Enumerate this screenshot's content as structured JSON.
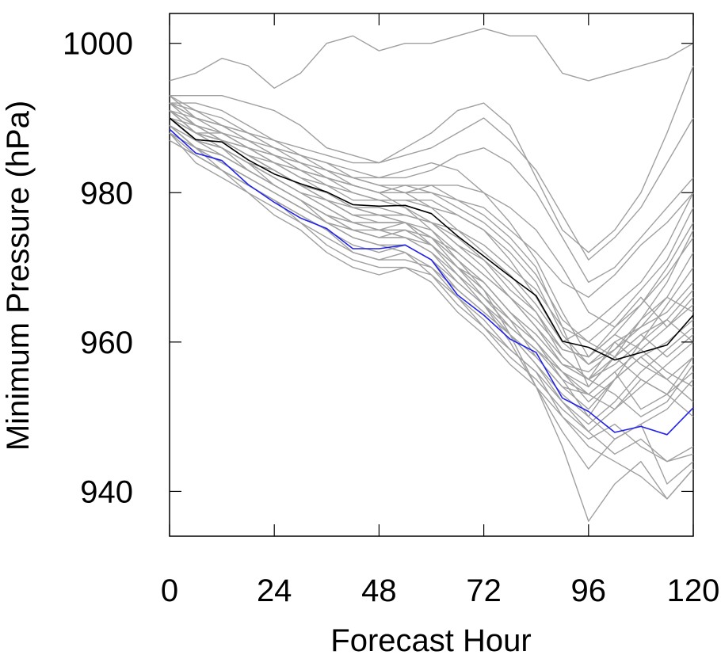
{
  "chart_data": {
    "type": "line",
    "title": "",
    "xlabel": "Forecast Hour",
    "ylabel": "Minimum Pressure (hPa)",
    "xlim": [
      0,
      120
    ],
    "ylim": [
      934,
      1004
    ],
    "x_ticks": [
      0,
      24,
      48,
      72,
      96,
      120
    ],
    "x_tick_labels": [
      "0",
      "24",
      "48",
      "72",
      "96",
      "120"
    ],
    "y_ticks": [
      940,
      960,
      980,
      1000
    ],
    "y_tick_labels": [
      "940",
      "960",
      "980",
      "1000"
    ],
    "grid": false,
    "legend": "none",
    "x": [
      0,
      6,
      12,
      18,
      24,
      30,
      36,
      42,
      48,
      54,
      60,
      66,
      72,
      78,
      84,
      90,
      96,
      102,
      108,
      114,
      120
    ],
    "highlight_series": [
      {
        "color": "#000000",
        "values": [
          990,
          987.1,
          986.8,
          984.4,
          982.5,
          981.2,
          980.1,
          978.4,
          978.2,
          978.3,
          977.2,
          974.2,
          971.5,
          968.8,
          966.2,
          960.1,
          959.3,
          957.6,
          958.6,
          959.6,
          963.6
        ]
      },
      {
        "color": "#2222ee",
        "values": [
          988.5,
          985.3,
          984.3,
          981.1,
          978.7,
          976.6,
          975.2,
          972.5,
          972.5,
          973.0,
          971.0,
          966.3,
          963.6,
          960.4,
          958.6,
          952.5,
          950.7,
          947.9,
          948.7,
          947.6,
          951.2
        ]
      }
    ],
    "ensemble_color": "#a0a0a0",
    "ensemble_series": [
      {
        "values": [
          995,
          996,
          998,
          997,
          994,
          996,
          1000,
          1001,
          999,
          1000,
          1000,
          1001,
          1002,
          1001,
          1001,
          996,
          995,
          996,
          997,
          998,
          1000
        ]
      },
      {
        "values": [
          993,
          993,
          993,
          992,
          991,
          989,
          986,
          985,
          984,
          986,
          988,
          991,
          992,
          989,
          982,
          975,
          972,
          975,
          980,
          988,
          997
        ]
      },
      {
        "values": [
          992,
          992,
          991,
          989,
          987,
          985,
          983,
          981,
          980,
          978,
          975,
          971,
          967,
          961,
          954,
          946,
          936,
          941,
          944,
          939,
          943
        ]
      },
      {
        "values": [
          991,
          989,
          987,
          986,
          984,
          982,
          980,
          978,
          977,
          976,
          973,
          969,
          965,
          960,
          954,
          948,
          943,
          947,
          949,
          941,
          944
        ]
      },
      {
        "values": [
          993,
          990,
          989,
          987,
          986,
          984,
          983,
          982,
          981,
          980,
          980,
          979,
          977,
          974,
          970,
          962,
          954,
          958,
          963,
          968,
          975
        ]
      },
      {
        "values": [
          989,
          986,
          984,
          982,
          980,
          978,
          976,
          975,
          974,
          975,
          973,
          970,
          967,
          963,
          960,
          955,
          950,
          955,
          960,
          965,
          970
        ]
      },
      {
        "values": [
          990,
          988,
          987,
          985,
          983,
          981,
          979,
          977,
          977,
          976,
          975,
          972,
          969,
          966,
          962,
          958,
          955,
          960,
          957,
          955,
          958
        ]
      },
      {
        "values": [
          988,
          984,
          982,
          980,
          977,
          975,
          972,
          970,
          969,
          970,
          968,
          964,
          961,
          957,
          954,
          950,
          946,
          944,
          942,
          939,
          943
        ]
      },
      {
        "values": [
          991,
          988,
          988,
          986,
          984,
          983,
          982,
          981,
          980,
          980,
          981,
          981,
          980,
          978,
          975,
          970,
          964,
          962,
          965,
          970,
          976
        ]
      },
      {
        "values": [
          990,
          987,
          985,
          983,
          981,
          979,
          976,
          974,
          973,
          972,
          969,
          965,
          962,
          958,
          955,
          951,
          948,
          951,
          955,
          953,
          958
        ]
      },
      {
        "values": [
          992,
          990,
          989,
          988,
          986,
          985,
          984,
          983,
          982,
          982,
          983,
          985,
          986,
          984,
          980,
          974,
          968,
          970,
          974,
          978,
          982
        ]
      },
      {
        "values": [
          987,
          985,
          983,
          980,
          978,
          976,
          973,
          971,
          970,
          970,
          969,
          966,
          962,
          959,
          956,
          952,
          949,
          952,
          956,
          959,
          962
        ]
      },
      {
        "values": [
          991,
          989,
          987,
          986,
          985,
          983,
          982,
          980,
          979,
          978,
          976,
          973,
          971,
          967,
          964,
          959,
          958,
          962,
          966,
          962,
          965
        ]
      },
      {
        "values": [
          989,
          986,
          983,
          981,
          979,
          977,
          975,
          973,
          972,
          973,
          971,
          967,
          964,
          961,
          958,
          954,
          953,
          956,
          959,
          956,
          954
        ]
      },
      {
        "values": [
          990,
          987,
          986,
          984,
          982,
          980,
          979,
          977,
          977,
          977,
          976,
          973,
          970,
          966,
          962,
          957,
          955,
          953,
          950,
          952,
          957
        ]
      },
      {
        "values": [
          992,
          989,
          988,
          986,
          984,
          983,
          981,
          980,
          979,
          979,
          979,
          977,
          975,
          971,
          966,
          960,
          957,
          960,
          962,
          966,
          972
        ]
      },
      {
        "values": [
          988,
          985,
          983,
          981,
          979,
          976,
          974,
          972,
          971,
          971,
          970,
          966,
          963,
          959,
          956,
          950,
          947,
          949,
          946,
          944,
          945
        ]
      },
      {
        "values": [
          991,
          988,
          987,
          985,
          983,
          981,
          979,
          978,
          978,
          977,
          976,
          975,
          973,
          970,
          967,
          962,
          960,
          963,
          967,
          971,
          978
        ]
      },
      {
        "values": [
          989,
          987,
          986,
          984,
          982,
          980,
          978,
          976,
          975,
          975,
          973,
          970,
          967,
          963,
          958,
          954,
          951,
          955,
          958,
          960,
          963
        ]
      },
      {
        "values": [
          990,
          988,
          986,
          984,
          981,
          979,
          977,
          976,
          975,
          976,
          974,
          970,
          966,
          962,
          959,
          956,
          952,
          955,
          958,
          955,
          952
        ]
      },
      {
        "values": [
          993,
          991,
          989,
          988,
          986,
          985,
          984,
          982,
          982,
          983,
          984,
          983,
          980,
          976,
          971,
          964,
          958,
          961,
          965,
          969,
          974
        ]
      },
      {
        "values": [
          987,
          985,
          983,
          981,
          979,
          977,
          975,
          972,
          971,
          972,
          970,
          967,
          964,
          961,
          957,
          953,
          950,
          947,
          949,
          951,
          955
        ]
      },
      {
        "values": [
          991,
          990,
          988,
          987,
          985,
          984,
          983,
          982,
          981,
          981,
          980,
          978,
          976,
          973,
          969,
          963,
          960,
          958,
          961,
          963,
          960
        ]
      },
      {
        "values": [
          989,
          986,
          985,
          983,
          981,
          979,
          977,
          975,
          975,
          974,
          972,
          968,
          965,
          962,
          959,
          955,
          953,
          956,
          951,
          953,
          956
        ]
      },
      {
        "values": [
          992,
          990,
          989,
          987,
          985,
          984,
          982,
          981,
          980,
          980,
          978,
          975,
          972,
          969,
          965,
          960,
          962,
          965,
          968,
          973,
          980
        ]
      },
      {
        "values": [
          988,
          986,
          984,
          982,
          980,
          978,
          976,
          974,
          973,
          973,
          971,
          968,
          965,
          961,
          957,
          952,
          948,
          945,
          947,
          944,
          946
        ]
      },
      {
        "values": [
          990,
          988,
          987,
          985,
          984,
          982,
          981,
          979,
          979,
          979,
          978,
          977,
          975,
          972,
          968,
          961,
          957,
          959,
          962,
          964,
          968
        ]
      },
      {
        "values": [
          991,
          989,
          987,
          985,
          983,
          981,
          979,
          977,
          976,
          976,
          974,
          971,
          968,
          964,
          960,
          956,
          954,
          958,
          961,
          958,
          961
        ]
      },
      {
        "values": [
          989,
          987,
          986,
          984,
          983,
          981,
          980,
          978,
          977,
          977,
          976,
          974,
          971,
          968,
          964,
          958,
          955,
          957,
          960,
          963,
          967
        ]
      },
      {
        "values": [
          990,
          987,
          986,
          983,
          981,
          979,
          977,
          975,
          974,
          974,
          972,
          969,
          966,
          963,
          960,
          956,
          953,
          951,
          954,
          957,
          960
        ]
      },
      {
        "values": [
          992,
          991,
          990,
          988,
          987,
          986,
          985,
          984,
          984,
          985,
          986,
          988,
          990,
          987,
          983,
          977,
          971,
          974,
          978,
          984,
          990
        ]
      },
      {
        "values": [
          988,
          986,
          984,
          982,
          980,
          978,
          976,
          975,
          974,
          974,
          973,
          970,
          968,
          964,
          961,
          957,
          955,
          958,
          955,
          953,
          950
        ]
      },
      {
        "values": [
          990,
          989,
          988,
          986,
          985,
          983,
          982,
          981,
          980,
          981,
          981,
          979,
          978,
          975,
          972,
          968,
          966,
          969,
          973,
          976,
          980
        ]
      },
      {
        "values": [
          991,
          988,
          986,
          984,
          982,
          980,
          978,
          976,
          975,
          975,
          974,
          971,
          968,
          964,
          961,
          957,
          956,
          959,
          963,
          966,
          964
        ]
      },
      {
        "values": [
          989,
          986,
          985,
          983,
          981,
          979,
          977,
          976,
          976,
          976,
          974,
          972,
          969,
          966,
          963,
          959,
          958,
          961,
          959,
          962,
          966
        ]
      }
    ]
  }
}
